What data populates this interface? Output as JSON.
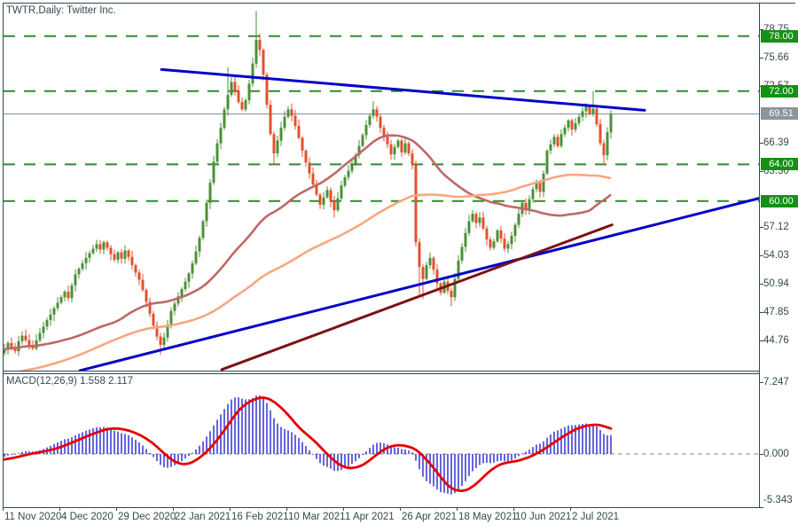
{
  "window": {
    "title": "TWTR,Daily: Twitter Inc."
  },
  "macd_panel": {
    "label": "MACD(12,26,9) 1.558 2.117"
  },
  "colors": {
    "frame": "#33494e",
    "text": "#33494e",
    "candle_up": "#4a9138",
    "candle_down": "#e2512c",
    "level_line": "#2e8b2e",
    "level_badge_bg": "#149114",
    "price_badge_bg": "#8b959b",
    "current_price_line": "#90a0a8",
    "sma50": "#bf6868",
    "sma100": "#f7a77f",
    "trend_blue": "#0202c8",
    "trend_maroon": "#7a1212",
    "macd_bar": "#0000c8",
    "macd_signal": "#e60000",
    "macd_zero": "#9aa4ac"
  },
  "price_axis": {
    "tick_labels": [
      "78.75",
      "75.66",
      "72.57",
      "66.39",
      "63.30",
      "57.12",
      "54.03",
      "50.94",
      "47.85",
      "44.76"
    ],
    "tick_values": [
      78.75,
      75.66,
      72.57,
      66.39,
      63.3,
      57.12,
      54.03,
      50.94,
      47.85,
      44.76
    ],
    "badges": [
      {
        "text": "78.00",
        "value": 78.0,
        "kind": "level"
      },
      {
        "text": "72.00",
        "value": 72.0,
        "kind": "level"
      },
      {
        "text": "69.51",
        "value": 69.51,
        "kind": "current"
      },
      {
        "text": "64.00",
        "value": 64.0,
        "kind": "level"
      },
      {
        "text": "60.00",
        "value": 60.0,
        "kind": "level"
      }
    ]
  },
  "macd_axis": {
    "ticks": [
      {
        "text": "7.247",
        "value": 7.247
      },
      {
        "text": "0.000",
        "value": 0.0
      },
      {
        "text": "-5.343",
        "value": -5.343
      }
    ]
  },
  "time_axis": {
    "labels": [
      "11 Nov 2020",
      "4 Dec 2020",
      "29 Dec 2020",
      "22 Jan 2021",
      "16 Feb 2021",
      "10 Mar 2021",
      "1 Apr 2021",
      "26 Apr 2021",
      "18 May 2021",
      "10 Jun 2021",
      "2 Jul 2021"
    ]
  },
  "chart_data": {
    "type": "candlestick+macd",
    "symbol": "TWTR",
    "timeframe": "Daily",
    "company": "Twitter Inc.",
    "price_range_visible": [
      41.4,
      81.6
    ],
    "closes": [
      43.8,
      44.5,
      44.0,
      43.6,
      44.7,
      45.3,
      44.8,
      44.2,
      43.9,
      44.8,
      45.6,
      46.3,
      47.0,
      47.6,
      48.3,
      48.9,
      49.5,
      50.1,
      49.4,
      50.8,
      52.0,
      52.6,
      53.2,
      53.8,
      54.3,
      54.8,
      55.3,
      54.7,
      55.5,
      54.9,
      54.2,
      53.6,
      54.4,
      53.7,
      54.6,
      53.9,
      53.0,
      52.2,
      51.4,
      50.3,
      49.0,
      47.7,
      46.4,
      45.2,
      44.3,
      45.1,
      46.5,
      48.0,
      48.8,
      49.6,
      50.4,
      51.2,
      52.1,
      53.2,
      54.5,
      56.0,
      57.8,
      59.8,
      62.0,
      64.3,
      66.3,
      68.0,
      70.0,
      71.6,
      73.0,
      72.0,
      70.8,
      70.0,
      71.0,
      72.8,
      75.0,
      77.6,
      76.5,
      73.8,
      70.5,
      67.3,
      65.2,
      66.6,
      68.0,
      69.2,
      70.0,
      69.3,
      68.2,
      66.9,
      65.5,
      64.2,
      63.0,
      61.8,
      60.7,
      59.6,
      60.4,
      61.2,
      60.0,
      59.0,
      60.3,
      61.7,
      62.6,
      63.3,
      64.1,
      65.0,
      66.0,
      67.2,
      68.3,
      69.3,
      70.0,
      69.2,
      68.0,
      67.0,
      66.2,
      65.1,
      65.9,
      66.6,
      65.3,
      66.3,
      65.2,
      64.0,
      55.5,
      52.8,
      51.5,
      53.0,
      53.8,
      52.5,
      51.0,
      50.0,
      51.2,
      50.2,
      49.5,
      51.5,
      53.5,
      55.0,
      56.5,
      57.8,
      58.6,
      57.6,
      58.2,
      57.0,
      55.8,
      54.9,
      55.6,
      56.8,
      55.9,
      54.8,
      55.3,
      56.2,
      57.4,
      58.6,
      59.8,
      59.0,
      60.2,
      61.3,
      62.0,
      61.0,
      63.0,
      65.5,
      66.2,
      67.0,
      66.0,
      67.3,
      68.0,
      68.8,
      67.8,
      68.5,
      69.2,
      69.8,
      70.3,
      69.5,
      70.1,
      68.4,
      66.3,
      65.0,
      67.5,
      69.51
    ],
    "wick_overrides": {
      "44": {
        "low": 43.2
      },
      "63": {
        "high": 74.6
      },
      "71": {
        "high": 80.75
      },
      "76": {
        "low": 63.9
      },
      "93": {
        "low": 58.2
      },
      "104": {
        "high": 70.9
      },
      "117": {
        "low": 49.8
      },
      "118": {
        "low": 49.3
      },
      "126": {
        "low": 48.5
      },
      "166": {
        "high": 72.0
      },
      "169": {
        "low": 64.0
      }
    },
    "horizontal_levels": [
      78.0,
      72.0,
      64.0,
      60.0
    ],
    "current_price": 69.51,
    "trendlines": [
      {
        "name": "descending-resistance",
        "color": "trend_blue",
        "i1": 44.3,
        "p1": 74.35,
        "i2": 180.5,
        "p2": 69.9
      },
      {
        "name": "ascending-support-long",
        "color": "trend_blue",
        "i1": 21.3,
        "p1": 41.5,
        "i2": 212.8,
        "p2": 60.3
      },
      {
        "name": "ascending-support-short",
        "color": "trend_maroon",
        "i1": 61.3,
        "p1": 41.6,
        "i2": 171.3,
        "p2": 57.4
      }
    ],
    "moving_averages": [
      {
        "period": 50,
        "color_key": "sma50"
      },
      {
        "period": 100,
        "color_key": "sma100"
      }
    ],
    "macd": {
      "fast": 12,
      "slow": 26,
      "signal": 9,
      "last_main": 1.558,
      "last_signal": 2.117,
      "axis_max": 7.247,
      "axis_min": -5.343
    }
  }
}
